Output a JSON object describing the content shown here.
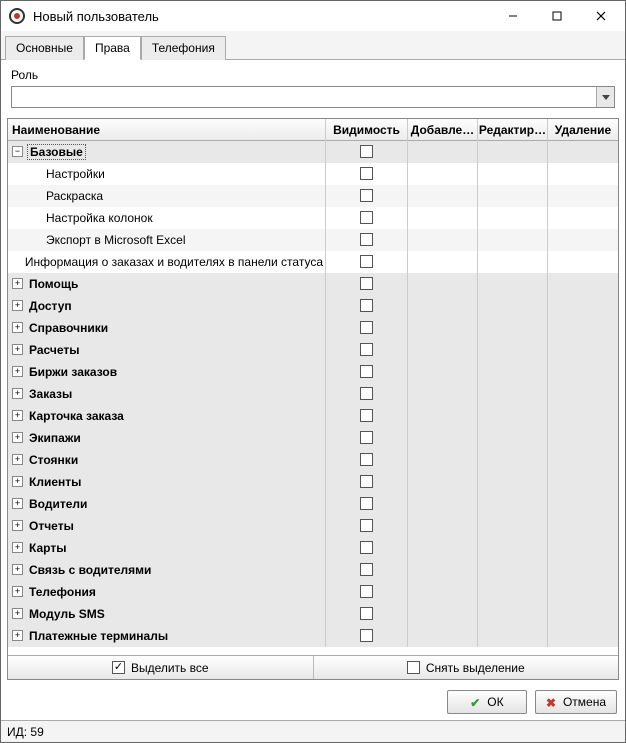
{
  "window": {
    "title": "Новый пользователь"
  },
  "tabs": [
    {
      "label": "Основные",
      "active": false
    },
    {
      "label": "Права",
      "active": true
    },
    {
      "label": "Телефония",
      "active": false
    }
  ],
  "role": {
    "label": "Роль",
    "value": ""
  },
  "columns": {
    "name": "Наименование",
    "visibility": "Видимость",
    "add": "Добавле…",
    "edit": "Редактир…",
    "delete": "Удаление"
  },
  "rows": [
    {
      "type": "group",
      "expanded": true,
      "label": "Базовые",
      "selected": true,
      "indent": 0
    },
    {
      "type": "child",
      "label": "Настройки",
      "indent": 1,
      "alt": false
    },
    {
      "type": "child",
      "label": "Раскраска",
      "indent": 1,
      "alt": true
    },
    {
      "type": "child",
      "label": "Настройка колонок",
      "indent": 1,
      "alt": false
    },
    {
      "type": "child",
      "label": "Экспорт в Microsoft Excel",
      "indent": 1,
      "alt": true
    },
    {
      "type": "child",
      "label": "Информация о заказах и водителях в панели статуса",
      "indent": 1,
      "alt": false
    },
    {
      "type": "group",
      "expanded": false,
      "label": "Помощь",
      "indent": 0
    },
    {
      "type": "group",
      "expanded": false,
      "label": "Доступ",
      "indent": 0
    },
    {
      "type": "group",
      "expanded": false,
      "label": "Справочники",
      "indent": 0
    },
    {
      "type": "group",
      "expanded": false,
      "label": "Расчеты",
      "indent": 0
    },
    {
      "type": "group",
      "expanded": false,
      "label": "Биржи заказов",
      "indent": 0
    },
    {
      "type": "group",
      "expanded": false,
      "label": "Заказы",
      "indent": 0
    },
    {
      "type": "group",
      "expanded": false,
      "label": "Карточка заказа",
      "indent": 0
    },
    {
      "type": "group",
      "expanded": false,
      "label": "Экипажи",
      "indent": 0
    },
    {
      "type": "group",
      "expanded": false,
      "label": "Стоянки",
      "indent": 0
    },
    {
      "type": "group",
      "expanded": false,
      "label": "Клиенты",
      "indent": 0
    },
    {
      "type": "group",
      "expanded": false,
      "label": "Водители",
      "indent": 0
    },
    {
      "type": "group",
      "expanded": false,
      "label": "Отчеты",
      "indent": 0
    },
    {
      "type": "group",
      "expanded": false,
      "label": "Карты",
      "indent": 0
    },
    {
      "type": "group",
      "expanded": false,
      "label": "Связь с водителями",
      "indent": 0
    },
    {
      "type": "group",
      "expanded": false,
      "label": "Телефония",
      "indent": 0
    },
    {
      "type": "group",
      "expanded": false,
      "label": "Модуль SMS",
      "indent": 0
    },
    {
      "type": "group",
      "expanded": false,
      "label": "Платежные терминалы",
      "indent": 0
    }
  ],
  "treeActions": {
    "selectAll": "Выделить все",
    "clear": "Снять выделение"
  },
  "footer": {
    "ok": "ОК",
    "cancel": "Отмена"
  },
  "status": {
    "text": "ИД: 59"
  },
  "colors": {
    "group_bg": "#e8e8e8",
    "child_bg": "#ffffff",
    "child_alt_bg": "#f5f5f5",
    "border": "#888888",
    "ok_icon": "#2e9e2e",
    "cancel_icon": "#c0392b"
  }
}
